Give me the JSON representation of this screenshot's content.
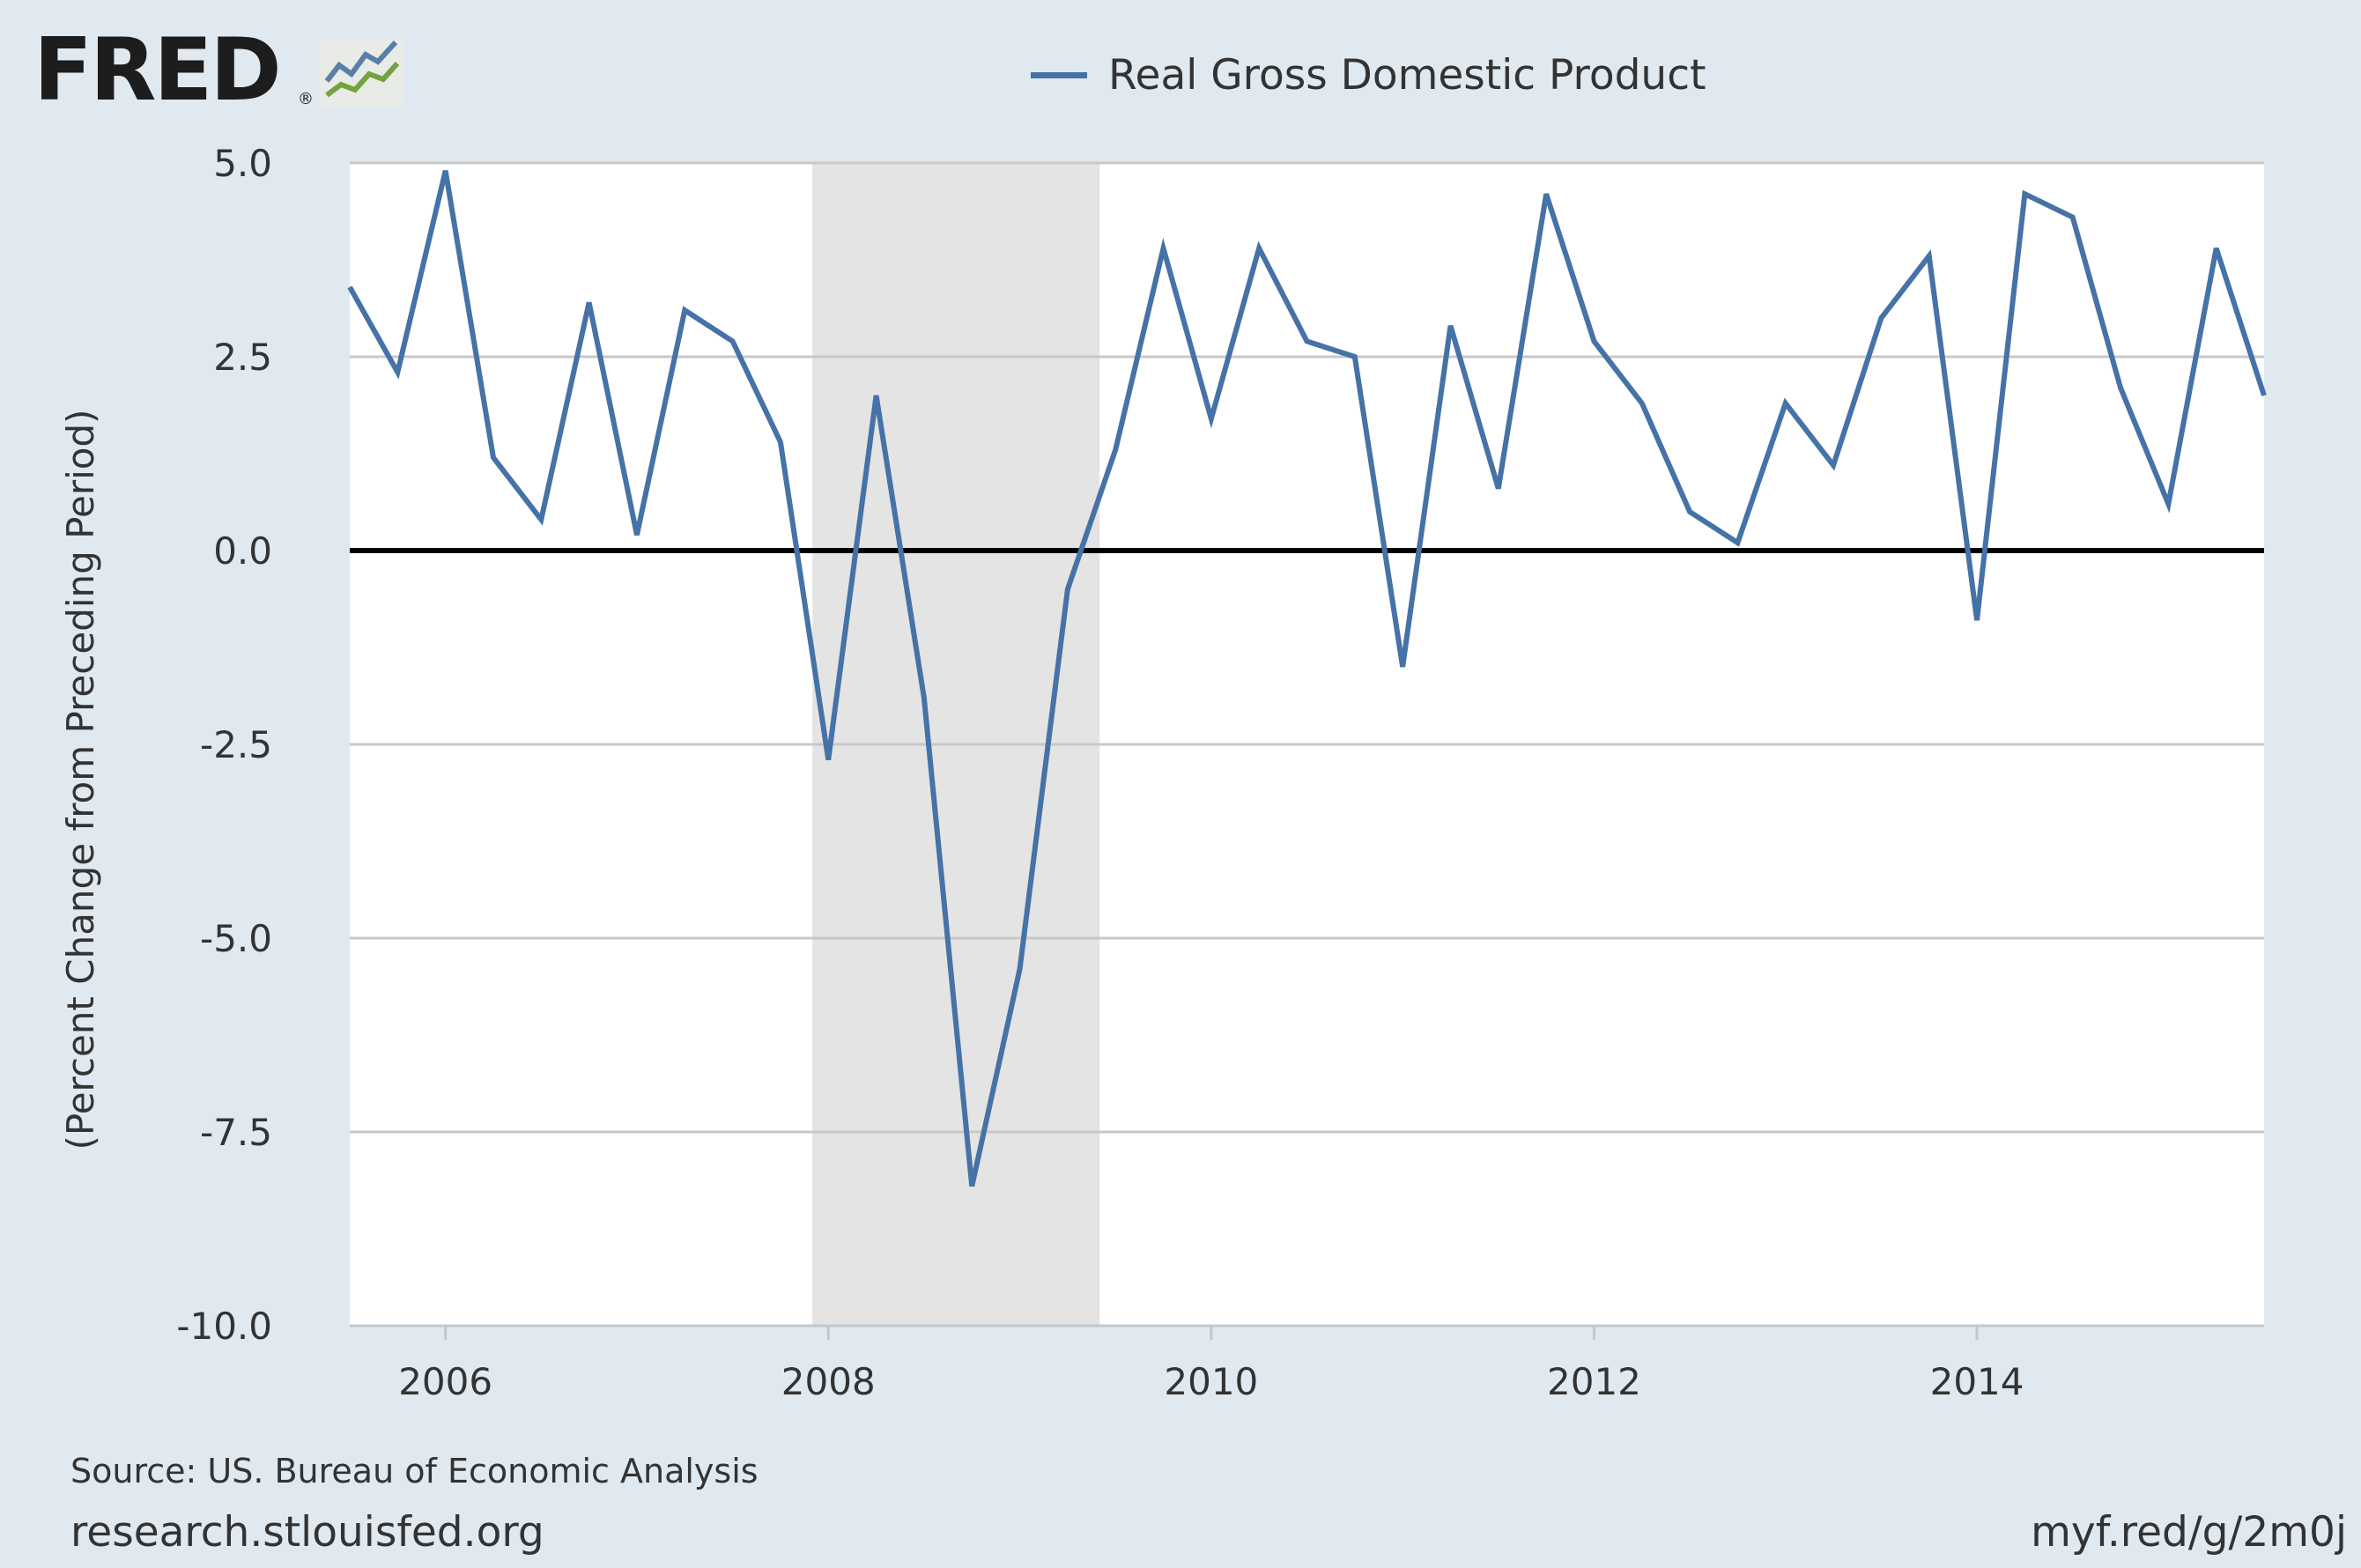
{
  "header": {
    "logo_text": "FRED",
    "logo_mark": "®",
    "logo_icon": "fred-chart-icon"
  },
  "legend": {
    "label": "Real Gross Domestic Product",
    "color": "#4572a7"
  },
  "footer": {
    "source": "Source: US. Bureau of Economic Analysis",
    "site": "research.stlouisfed.org",
    "shortlink": "myf.red/g/2m0j"
  },
  "chart_data": {
    "type": "line",
    "title": "",
    "xlabel": "",
    "ylabel": "(Percent Change from Preceding Period)",
    "xlim": [
      2005.5,
      2015.5
    ],
    "ylim": [
      -10,
      5
    ],
    "yticks": [
      5,
      2.5,
      0,
      -2.5,
      -5,
      -7.5,
      -10
    ],
    "ytick_labels": [
      "5.0",
      "2.5",
      "0.0",
      "-2.5",
      "-5.0",
      "-7.5",
      "-10.0"
    ],
    "xticks": [
      2006,
      2008,
      2010,
      2012,
      2014
    ],
    "xtick_labels": [
      "2006",
      "2008",
      "2010",
      "2012",
      "2014"
    ],
    "grid": true,
    "zero_line": true,
    "recession": {
      "start": 2007.917,
      "end": 2009.417,
      "color": "#e4e4e4"
    },
    "series": [
      {
        "name": "Real Gross Domestic Product",
        "color": "#4572a7",
        "x": [
          2005.5,
          2005.75,
          2006.0,
          2006.25,
          2006.5,
          2006.75,
          2007.0,
          2007.25,
          2007.5,
          2007.75,
          2008.0,
          2008.25,
          2008.5,
          2008.75,
          2009.0,
          2009.25,
          2009.5,
          2009.75,
          2010.0,
          2010.25,
          2010.5,
          2010.75,
          2011.0,
          2011.25,
          2011.5,
          2011.75,
          2012.0,
          2012.25,
          2012.5,
          2012.75,
          2013.0,
          2013.25,
          2013.5,
          2013.75,
          2014.0,
          2014.25,
          2014.5,
          2014.75,
          2015.0,
          2015.25,
          2015.5
        ],
        "values": [
          3.4,
          2.3,
          4.9,
          1.2,
          0.4,
          3.2,
          0.2,
          3.1,
          2.7,
          1.4,
          -2.7,
          2.0,
          -1.9,
          -8.2,
          -5.4,
          -0.5,
          1.3,
          3.9,
          1.7,
          3.9,
          2.7,
          2.5,
          -1.5,
          2.9,
          0.8,
          4.6,
          2.7,
          1.9,
          0.5,
          0.1,
          1.9,
          1.1,
          3.0,
          3.8,
          -0.9,
          4.6,
          4.3,
          2.1,
          0.6,
          3.9,
          2.0
        ]
      }
    ]
  }
}
